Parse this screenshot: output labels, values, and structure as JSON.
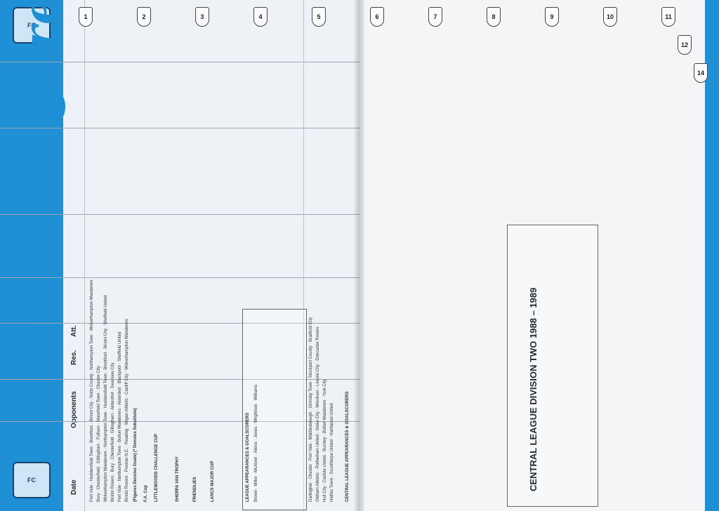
{
  "title": "Facts and Figures",
  "crest_text": "FC",
  "headers": {
    "date": "Date",
    "opponents": "Opponents",
    "res": "Res.",
    "att": "Att.",
    "columns": [
      "1",
      "2",
      "3",
      "4",
      "5",
      "6",
      "7",
      "8",
      "9",
      "10",
      "11",
      "12",
      "14"
    ]
  },
  "sections": {
    "fa_cup": "F.A. Cup",
    "littlewoods": "LITTLEWOODS CHALLENGE CUP",
    "sherpa": "SHERPA VAN TROPHY",
    "friendlies": "FRIENDLIES",
    "lancs_cup": "LANCS MAJOR CUP",
    "league_apps": "LEAGUE APPEARANCES & GOALSCORERS",
    "central_apps": "CENTRAL LEAGUE APPEARANCES & GOALSCORERS",
    "central_division": "CENTRAL LEAGUE DIVISION TWO 1988 – 1989",
    "sub_note": "(Figures Denotes Goals) (* Denotes Substitute)"
  },
  "league_opponents": [
    "Port Vale",
    "Huddersfield Town",
    "Brentford",
    "Bristol City",
    "Notts County",
    "Northampton Town",
    "Wolverhampton Wanderers",
    "Bury",
    "Chesterfield",
    "Gillingham",
    "Fulham",
    "Mansfield Town",
    "Chester City",
    "Wolverhampton Wanderers",
    "Northampton Town",
    "Huddersfield Town",
    "Brentford",
    "Bristol City",
    "Sheffield United",
    "Bristol Rovers",
    "Bury",
    "Chesterfield",
    "Gillingham",
    "Aldershot",
    "Swansea City",
    "Port Vale",
    "Northampton Town",
    "Bolton Wanderers",
    "Aldershot",
    "Blackpool",
    "Sheffield United",
    "Bristol Rovers",
    "Preston N.E.",
    "Reading",
    "Wigan Athletic",
    "Cardiff City",
    "Wolverhampton Wanderers"
  ],
  "central_opponents": [
    "Darlington",
    "Chester",
    "Port Vale",
    "Middlesbrough",
    "Grimsby Town",
    "Stockport County",
    "Bradford City",
    "Oldham Athletic",
    "Rotherham United",
    "Stoke City",
    "Wrexham",
    "Lincoln City",
    "Doncaster Rovers",
    "Hull City",
    "Carlisle United",
    "Burnley",
    "Bolton Wanderers",
    "York City",
    "Halifax Town",
    "Scunthorpe United",
    "Hartlepool United"
  ],
  "players": [
    "Brown",
    "Miller",
    "McAteer",
    "Atkins",
    "Jones",
    "Wrightson",
    "Williams",
    "Swann",
    "Ellis",
    "Brazil",
    "Paterson",
    "Joyce",
    "Rathbone"
  ]
}
